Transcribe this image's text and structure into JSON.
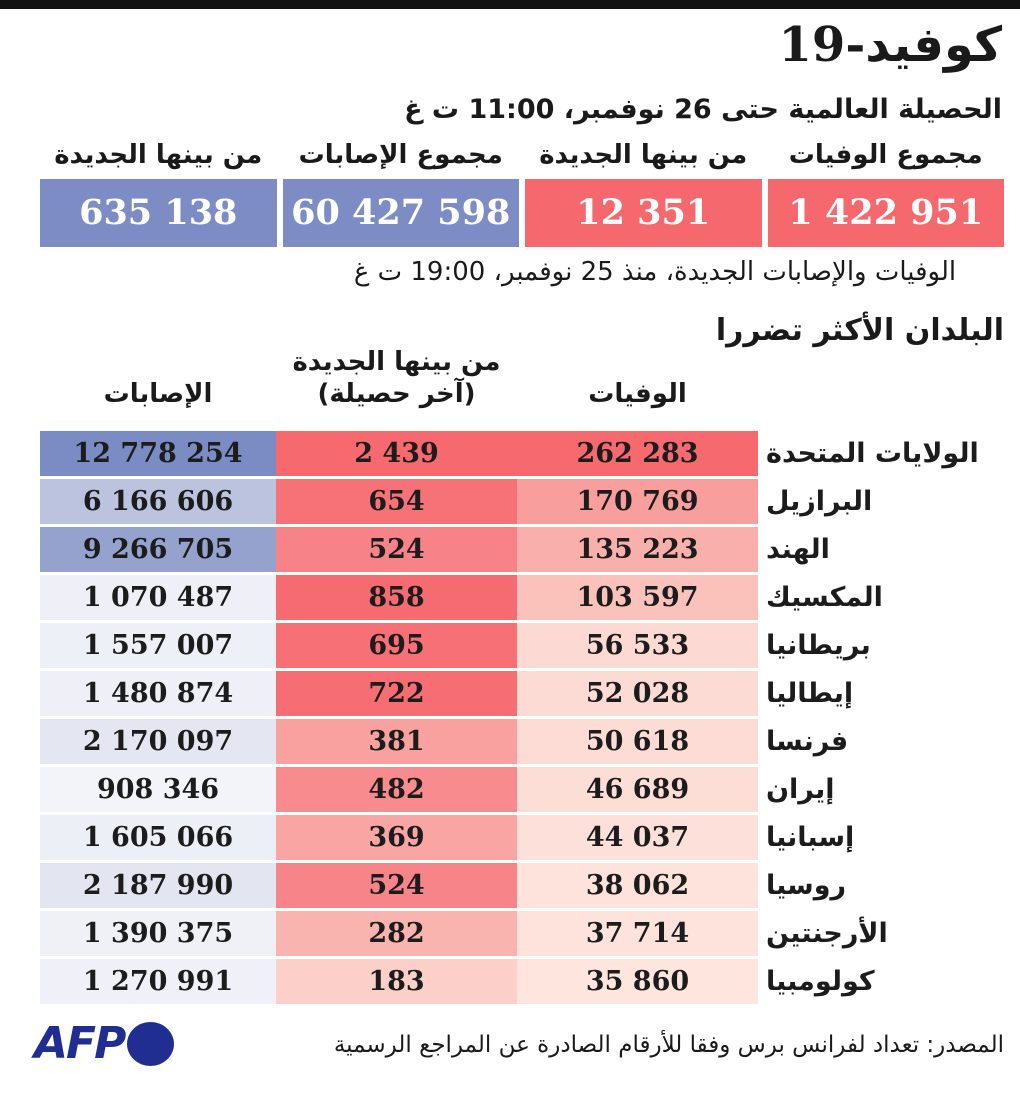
{
  "meta": {
    "accent_red": "#f5686e",
    "accent_blue": "#7d8cc4",
    "afp_blue": "#1f2e90",
    "topbar_black": "#121212"
  },
  "header": {
    "title": "كوفيد-19",
    "subtitle": "الحصيلة العالمية حتى 26 نوفمبر، 11:00 ت غ"
  },
  "summary": {
    "cards": [
      {
        "label": "مجموع الوفيات",
        "value": "1 422 951",
        "bg": "#f5686e"
      },
      {
        "label": "من بينها الجديدة",
        "value": "12 351",
        "bg": "#f5686e"
      },
      {
        "label": "مجموع الإصابات",
        "value": "60 427 598",
        "bg": "#7d8cc4"
      },
      {
        "label": "من بينها الجديدة",
        "value": "635 138",
        "bg": "#7d8cc4"
      }
    ],
    "note": "الوفيات والإصابات الجديدة، منذ 25 نوفمبر، 19:00 ت غ"
  },
  "countries": {
    "title": "البلدان الأكثر تضررا",
    "col_deaths": "الوفيات",
    "col_new_line1": "من بينها الجديدة",
    "col_new_line2": "(آخر حصيلة)",
    "col_cases": "الإصابات",
    "rows": [
      {
        "country": "الولايات المتحدة",
        "deaths": "262 283",
        "deaths_bg": "#f5696f",
        "new": "2 439",
        "new_bg": "#f5696f",
        "cases": "12 778 254",
        "cases_bg": "#7b8bc3"
      },
      {
        "country": "البرازيل",
        "deaths": "170 769",
        "deaths_bg": "#f89e9c",
        "new": "654",
        "new_bg": "#f67277",
        "cases": "6 166 606",
        "cases_bg": "#bcc3de"
      },
      {
        "country": "الهند",
        "deaths": "135 223",
        "deaths_bg": "#f9b0ac",
        "new": "524",
        "new_bg": "#f78388",
        "cases": "9 266 705",
        "cases_bg": "#96a2ce"
      },
      {
        "country": "المكسيك",
        "deaths": "103 597",
        "deaths_bg": "#fbc2bc",
        "new": "858",
        "new_bg": "#f56b71",
        "cases": "1 070 487",
        "cases_bg": "#eff0f7"
      },
      {
        "country": "بريطانيا",
        "deaths": "56 533",
        "deaths_bg": "#fcd9d3",
        "new": "695",
        "new_bg": "#f67076",
        "cases": "1 557 007",
        "cases_bg": "#eef0f7"
      },
      {
        "country": "إيطاليا",
        "deaths": "52 028",
        "deaths_bg": "#fcdbd4",
        "new": "722",
        "new_bg": "#f66e74",
        "cases": "1 480 874",
        "cases_bg": "#eff0f7"
      },
      {
        "country": "فرنسا",
        "deaths": "50 618",
        "deaths_bg": "#fcdcd5",
        "new": "381",
        "new_bg": "#f9a19f",
        "cases": "2 170 097",
        "cases_bg": "#e4e7f1"
      },
      {
        "country": "إيران",
        "deaths": "46 689",
        "deaths_bg": "#fcded7",
        "new": "482",
        "new_bg": "#f78b8d",
        "cases": "908 346",
        "cases_bg": "#f3f4f9"
      },
      {
        "country": "إسبانيا",
        "deaths": "44 037",
        "deaths_bg": "#fde0d9",
        "new": "369",
        "new_bg": "#f9a5a3",
        "cases": "1 605 066",
        "cases_bg": "#edeff6"
      },
      {
        "country": "روسيا",
        "deaths": "38 062",
        "deaths_bg": "#fde3dc",
        "new": "524",
        "new_bg": "#f78489",
        "cases": "2 187 990",
        "cases_bg": "#e3e6f1"
      },
      {
        "country": "الأرجنتين",
        "deaths": "37 714",
        "deaths_bg": "#fde3dc",
        "new": "282",
        "new_bg": "#fab4af",
        "cases": "1 390 375",
        "cases_bg": "#eff1f7"
      },
      {
        "country": "كولومبيا",
        "deaths": "35 860",
        "deaths_bg": "#fee5de",
        "new": "183",
        "new_bg": "#fcd0c8",
        "cases": "1 270 991",
        "cases_bg": "#f0f1f8"
      }
    ]
  },
  "footer": {
    "logo_text": "AFP",
    "source": "المصدر: تعداد لفرانس برس وفقا للأرقام الصادرة عن المراجع الرسمية"
  },
  "chart_data": {
    "type": "table",
    "title": "كوفيد-19",
    "subtitle": "الحصيلة العالمية حتى 26 نوفمبر، 11:00 ت غ",
    "note": "الوفيات والإصابات الجديدة، منذ 25 نوفمبر، 19:00 ت غ",
    "global_totals": {
      "total_deaths": 1422951,
      "new_deaths": 12351,
      "total_cases": 60427598,
      "new_cases": 635138
    },
    "section_title": "البلدان الأكثر تضررا",
    "columns": [
      "الوفيات",
      "من بينها الجديدة (آخر حصيلة)",
      "الإصابات"
    ],
    "rows": [
      {
        "country": "الولايات المتحدة",
        "deaths": 262283,
        "new_deaths": 2439,
        "cases": 12778254
      },
      {
        "country": "البرازيل",
        "deaths": 170769,
        "new_deaths": 654,
        "cases": 6166606
      },
      {
        "country": "الهند",
        "deaths": 135223,
        "new_deaths": 524,
        "cases": 9266705
      },
      {
        "country": "المكسيك",
        "deaths": 103597,
        "new_deaths": 858,
        "cases": 1070487
      },
      {
        "country": "بريطانيا",
        "deaths": 56533,
        "new_deaths": 695,
        "cases": 1557007
      },
      {
        "country": "إيطاليا",
        "deaths": 52028,
        "new_deaths": 722,
        "cases": 1480874
      },
      {
        "country": "فرنسا",
        "deaths": 50618,
        "new_deaths": 381,
        "cases": 2170097
      },
      {
        "country": "إيران",
        "deaths": 46689,
        "new_deaths": 482,
        "cases": 908346
      },
      {
        "country": "إسبانيا",
        "deaths": 44037,
        "new_deaths": 369,
        "cases": 1605066
      },
      {
        "country": "روسيا",
        "deaths": 38062,
        "new_deaths": 524,
        "cases": 2187990
      },
      {
        "country": "الأرجنتين",
        "deaths": 37714,
        "new_deaths": 282,
        "cases": 1390375
      },
      {
        "country": "كولومبيا",
        "deaths": 35860,
        "new_deaths": 183,
        "cases": 1270991
      }
    ],
    "color_coding": "red scale = deaths columns, blue scale = cases column; intensity proportional to value"
  }
}
